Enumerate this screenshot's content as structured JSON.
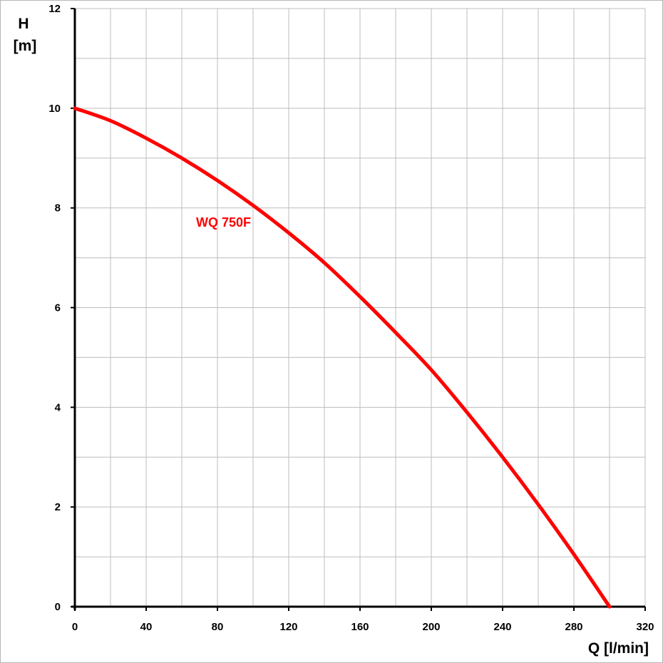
{
  "chart_data": {
    "type": "line",
    "title": "",
    "xlabel": "Q [l/min]",
    "ylabel_line1": "H",
    "ylabel_line2": "[m]",
    "xlim": [
      0,
      320
    ],
    "ylim": [
      0,
      12
    ],
    "x_ticks": [
      0,
      40,
      80,
      120,
      160,
      200,
      240,
      280,
      320
    ],
    "y_ticks": [
      0,
      2,
      4,
      6,
      8,
      10,
      12
    ],
    "x_grid_step": 20,
    "y_grid_step": 1,
    "grid": true,
    "series": [
      {
        "name": "WQ 750F",
        "color": "#ff0000",
        "x": [
          0,
          20,
          40,
          60,
          80,
          100,
          120,
          140,
          160,
          180,
          200,
          220,
          240,
          260,
          280,
          300
        ],
        "y": [
          10.0,
          9.75,
          9.4,
          9.0,
          8.55,
          8.05,
          7.5,
          6.9,
          6.22,
          5.5,
          4.75,
          3.9,
          3.0,
          2.05,
          1.05,
          0.0
        ]
      }
    ]
  }
}
